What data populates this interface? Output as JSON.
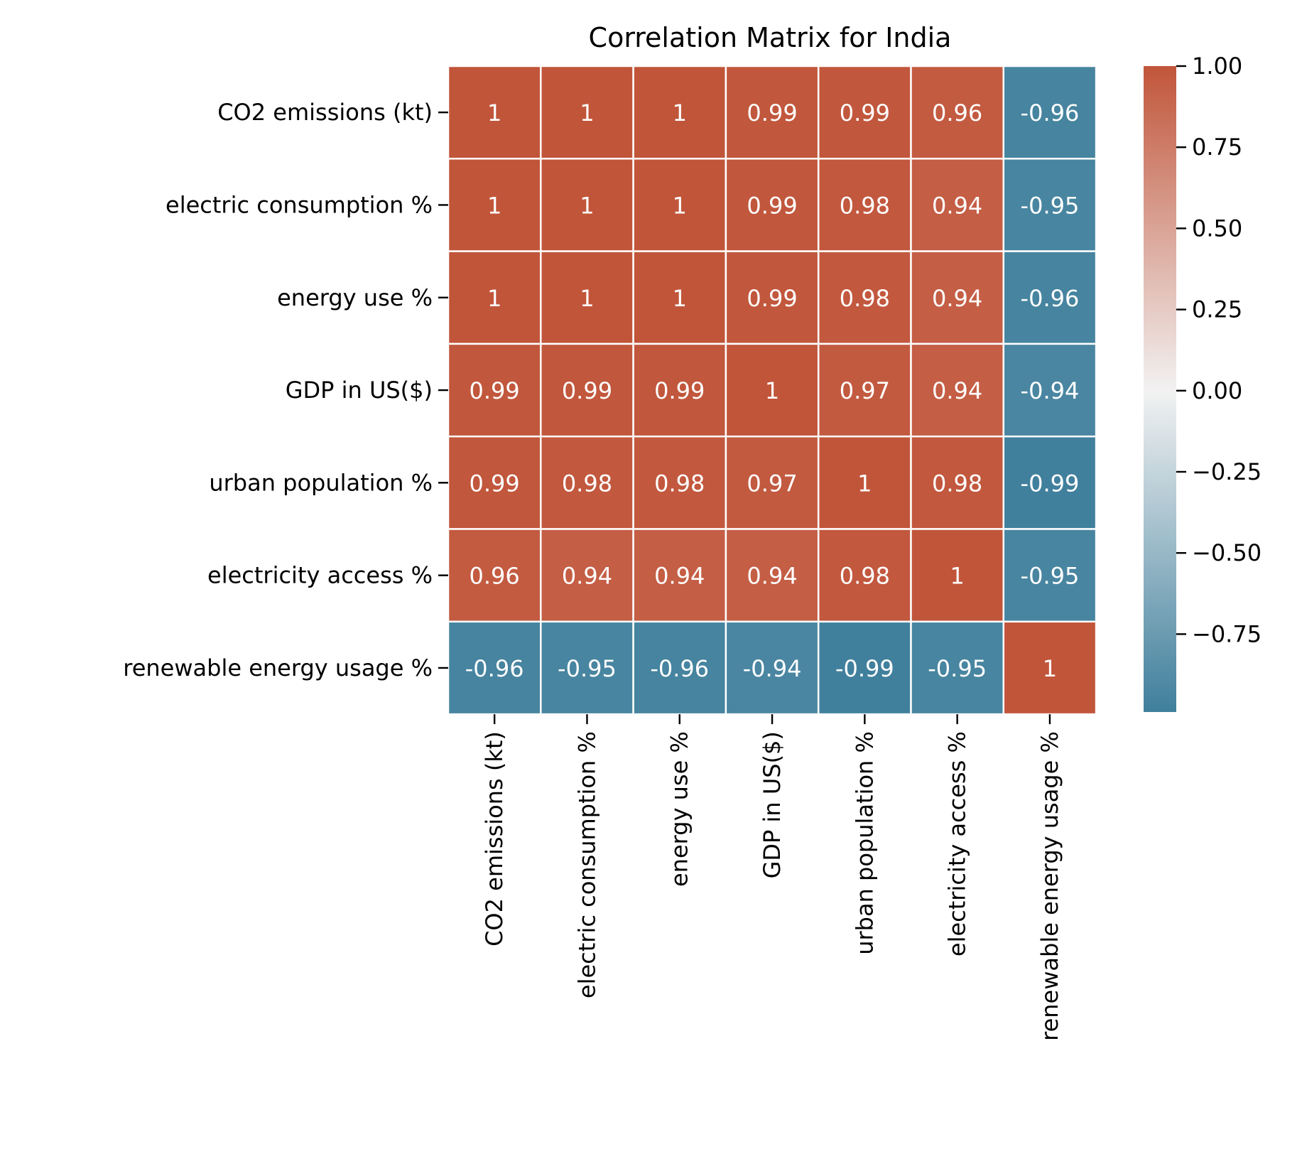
{
  "chart_data": {
    "type": "heatmap",
    "title": "Correlation Matrix for India",
    "xlabel": "",
    "ylabel": "",
    "rows": [
      "CO2 emissions (kt)",
      "electric consumption %",
      "energy use %",
      "GDP in US($)",
      "urban population %",
      "electricity access %",
      "renewable energy usage %"
    ],
    "columns": [
      "CO2 emissions (kt)",
      "electric consumption %",
      "energy use %",
      "GDP in US($)",
      "urban population %",
      "electricity access %",
      "renewable energy usage %"
    ],
    "values": [
      [
        1,
        1,
        1,
        0.99,
        0.99,
        0.96,
        -0.96
      ],
      [
        1,
        1,
        1,
        0.99,
        0.98,
        0.94,
        -0.95
      ],
      [
        1,
        1,
        1,
        0.99,
        0.98,
        0.94,
        -0.96
      ],
      [
        0.99,
        0.99,
        0.99,
        1,
        0.97,
        0.94,
        -0.94
      ],
      [
        0.99,
        0.98,
        0.98,
        0.97,
        1,
        0.98,
        -0.99
      ],
      [
        0.96,
        0.94,
        0.94,
        0.94,
        0.98,
        1,
        -0.95
      ],
      [
        -0.96,
        -0.95,
        -0.96,
        -0.94,
        -0.99,
        -0.95,
        1
      ]
    ],
    "cell_labels": [
      [
        "1",
        "1",
        "1",
        "0.99",
        "0.99",
        "0.96",
        "-0.96"
      ],
      [
        "1",
        "1",
        "1",
        "0.99",
        "0.98",
        "0.94",
        "-0.95"
      ],
      [
        "1",
        "1",
        "1",
        "0.99",
        "0.98",
        "0.94",
        "-0.96"
      ],
      [
        "0.99",
        "0.99",
        "0.99",
        "1",
        "0.97",
        "0.94",
        "-0.94"
      ],
      [
        "0.99",
        "0.98",
        "0.98",
        "0.97",
        "1",
        "0.98",
        "-0.99"
      ],
      [
        "0.96",
        "0.94",
        "0.94",
        "0.94",
        "0.98",
        "1",
        "-0.95"
      ],
      [
        "-0.96",
        "-0.95",
        "-0.96",
        "-0.94",
        "-0.99",
        "-0.95",
        "1"
      ]
    ],
    "colorbar": {
      "range": [
        -0.99,
        1.0
      ],
      "ticks": [
        1.0,
        0.75,
        0.5,
        0.25,
        0.0,
        -0.25,
        -0.5,
        -0.75
      ],
      "tick_labels": [
        "1.00",
        "0.75",
        "0.50",
        "0.25",
        "0.00",
        "−0.25",
        "−0.50",
        "−0.75"
      ],
      "colors": {
        "negative": "#3f7f9c",
        "center": "#f2f2f2",
        "positive": "#c1553a"
      }
    },
    "cell_border_color": "#ffffff",
    "cell_text_color": "#ffffff"
  }
}
